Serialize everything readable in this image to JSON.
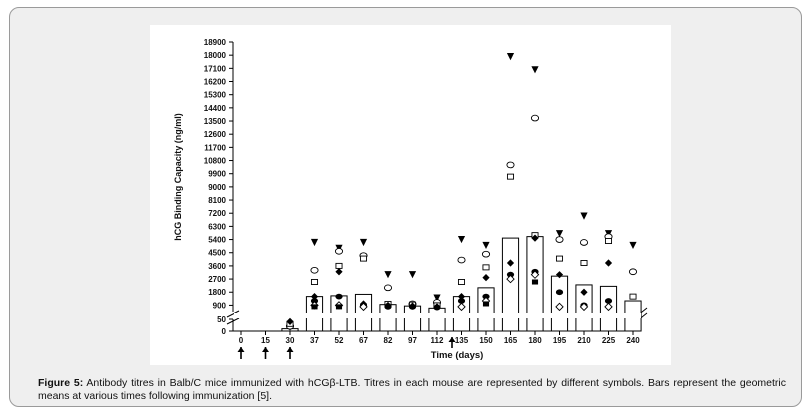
{
  "chart_data": {
    "type": "bar",
    "ylabel": "hCG Binding Capacity (ng/ml)",
    "xlabel": "Time (days)",
    "y_ticks_upper": [
      900,
      1800,
      2700,
      3600,
      4500,
      5400,
      6300,
      7200,
      8100,
      9000,
      9900,
      10800,
      11700,
      12600,
      13500,
      14400,
      15300,
      16200,
      17100,
      18000,
      18900
    ],
    "y_ticks_lower": [
      0,
      50
    ],
    "categories": [
      "0",
      "15",
      "30",
      "37",
      "52",
      "67",
      "82",
      "97",
      "112",
      "135",
      "150",
      "165",
      "180",
      "195",
      "210",
      "225",
      "240"
    ],
    "immunization_days": [
      "0",
      "15",
      "30",
      "112"
    ],
    "geometric_means": [
      0,
      0,
      10,
      1500,
      1550,
      1650,
      950,
      850,
      700,
      1500,
      2100,
      5500,
      5600,
      2900,
      2300,
      2200,
      1200
    ],
    "individual_titres": [
      {
        "day": "30",
        "values": [
          15,
          20,
          30,
          40
        ]
      },
      {
        "day": "37",
        "values": [
          5200,
          3300,
          2500,
          1500,
          1200,
          900,
          800
        ]
      },
      {
        "day": "52",
        "values": [
          4800,
          4600,
          3600,
          3200,
          1500,
          900,
          800
        ]
      },
      {
        "day": "67",
        "values": [
          5200,
          4300,
          4100,
          1000,
          900,
          800
        ]
      },
      {
        "day": "82",
        "values": [
          3000,
          2100,
          1000,
          900,
          800
        ]
      },
      {
        "day": "97",
        "values": [
          3000,
          1000,
          950,
          850,
          800
        ]
      },
      {
        "day": "112",
        "values": [
          1400,
          1100,
          900,
          800,
          750
        ]
      },
      {
        "day": "135",
        "values": [
          5400,
          4000,
          2500,
          1500,
          1200,
          800
        ]
      },
      {
        "day": "150",
        "values": [
          5000,
          4400,
          3500,
          2800,
          1500,
          1200,
          1000
        ]
      },
      {
        "day": "165",
        "values": [
          17900,
          10500,
          9700,
          3800,
          3000,
          2700
        ]
      },
      {
        "day": "180",
        "values": [
          17000,
          13700,
          5700,
          5500,
          3200,
          3000,
          2500
        ]
      },
      {
        "day": "195",
        "values": [
          5800,
          5400,
          4100,
          3000,
          1800,
          800
        ]
      },
      {
        "day": "210",
        "values": [
          7000,
          5200,
          3800,
          1800,
          900,
          800
        ]
      },
      {
        "day": "225",
        "values": [
          5800,
          5600,
          5300,
          3800,
          1200,
          800
        ]
      },
      {
        "day": "240",
        "values": [
          5000,
          3200,
          1500
        ]
      }
    ]
  },
  "caption": {
    "label": "Figure 5:",
    "text": " Antibody titres in Balb/C mice immunized with hCGβ-LTB. Titres in each mouse are represented by different symbols. Bars represent the geometric means at various times following immunization [5]."
  }
}
